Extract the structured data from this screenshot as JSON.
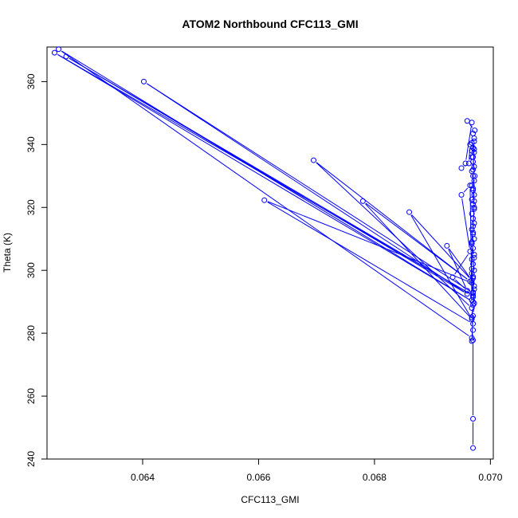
{
  "chart_data": {
    "type": "line",
    "title": "ATOM2 Northbound CFC113_GMI",
    "xlabel": "CFC113_GMI",
    "ylabel": "Theta (K)",
    "xlim": [
      0.06235,
      0.07005
    ],
    "ylim": [
      240,
      371
    ],
    "x_ticks": [
      0.064,
      0.066,
      0.068,
      0.07
    ],
    "x_tick_labels": [
      "0.064",
      "0.066",
      "0.068",
      "0.070"
    ],
    "y_ticks": [
      240,
      260,
      280,
      300,
      320,
      340,
      360
    ],
    "y_tick_labels": [
      "240",
      "260",
      "280",
      "300",
      "320",
      "340",
      "360"
    ],
    "grid": false,
    "series_color": "#0000ff",
    "marker": "open-circle",
    "series": [
      {
        "points": [
          [
            0.0697,
            243.5
          ],
          [
            0.0697,
            252.8
          ],
          [
            0.0697,
            277.8
          ],
          [
            0.06968,
            278.5
          ],
          [
            0.06255,
            370.3
          ],
          [
            0.0697,
            290.0
          ],
          [
            0.06248,
            369.2
          ],
          [
            0.0697,
            292.0
          ],
          [
            0.06268,
            368.0
          ],
          [
            0.0696,
            292.5
          ],
          [
            0.06402,
            360.0
          ],
          [
            0.0697,
            292.8
          ],
          [
            0.06968,
            296.0
          ],
          [
            0.0661,
            322.3
          ],
          [
            0.0697,
            283.0
          ],
          [
            0.06968,
            288.0
          ],
          [
            0.06695,
            335.0
          ],
          [
            0.06965,
            296.5
          ],
          [
            0.0678,
            322.0
          ],
          [
            0.06968,
            284.5
          ],
          [
            0.0686,
            318.5
          ],
          [
            0.06968,
            296.8
          ],
          [
            0.06925,
            307.8
          ],
          [
            0.0696,
            293.5
          ],
          [
            0.06935,
            297.8
          ],
          [
            0.06965,
            306.0
          ],
          [
            0.0695,
            324.0
          ],
          [
            0.06965,
            327.0
          ],
          [
            0.06968,
            290.5
          ],
          [
            0.0697,
            291.5
          ],
          [
            0.0697,
            293.0
          ],
          [
            0.06972,
            295.0
          ],
          [
            0.0697,
            297.5
          ],
          [
            0.06968,
            299.0
          ],
          [
            0.06972,
            300.0
          ],
          [
            0.0697,
            302.0
          ],
          [
            0.06968,
            303.5
          ],
          [
            0.06972,
            305.0
          ],
          [
            0.0697,
            307.0
          ],
          [
            0.06968,
            308.5
          ],
          [
            0.06972,
            310.0
          ],
          [
            0.0697,
            311.5
          ],
          [
            0.06968,
            313.0
          ],
          [
            0.06972,
            315.0
          ],
          [
            0.0697,
            316.5
          ],
          [
            0.06968,
            318.0
          ],
          [
            0.06972,
            319.5
          ],
          [
            0.0697,
            321.0
          ],
          [
            0.06968,
            322.5
          ],
          [
            0.06972,
            324.0
          ],
          [
            0.0697,
            325.5
          ],
          [
            0.06968,
            327.0
          ],
          [
            0.06972,
            328.5
          ],
          [
            0.0697,
            330.0
          ],
          [
            0.06968,
            331.5
          ],
          [
            0.06972,
            333.0
          ],
          [
            0.0697,
            334.5
          ],
          [
            0.06968,
            336.0
          ],
          [
            0.06972,
            337.5
          ],
          [
            0.0697,
            339.0
          ],
          [
            0.06968,
            340.5
          ],
          [
            0.06972,
            342.0
          ],
          [
            0.0697,
            343.5
          ],
          [
            0.06973,
            344.5
          ],
          [
            0.0696,
            347.5
          ],
          [
            0.06968,
            347.0
          ],
          [
            0.06957,
            334.0
          ],
          [
            0.0695,
            332.5
          ],
          [
            0.06963,
            334.0
          ],
          [
            0.06965,
            340.0
          ],
          [
            0.06968,
            338.0
          ],
          [
            0.06972,
            341.0
          ],
          [
            0.0697,
            336.0
          ],
          [
            0.06973,
            330.0
          ],
          [
            0.0697,
            326.0
          ],
          [
            0.06972,
            320.0
          ],
          [
            0.0697,
            314.0
          ],
          [
            0.06968,
            309.0
          ],
          [
            0.06972,
            304.0
          ],
          [
            0.0697,
            298.0
          ],
          [
            0.06972,
            294.0
          ],
          [
            0.0697,
            289.0
          ],
          [
            0.06968,
            285.0
          ],
          [
            0.0697,
            281.0
          ],
          [
            0.06968,
            277.5
          ],
          [
            0.0697,
            285.5
          ],
          [
            0.06972,
            289.5
          ],
          [
            0.06968,
            300.5
          ],
          [
            0.0697,
            312.0
          ],
          [
            0.06972,
            322.0
          ],
          [
            0.0697,
            332.0
          ],
          [
            0.06972,
            338.5
          ]
        ]
      }
    ]
  }
}
